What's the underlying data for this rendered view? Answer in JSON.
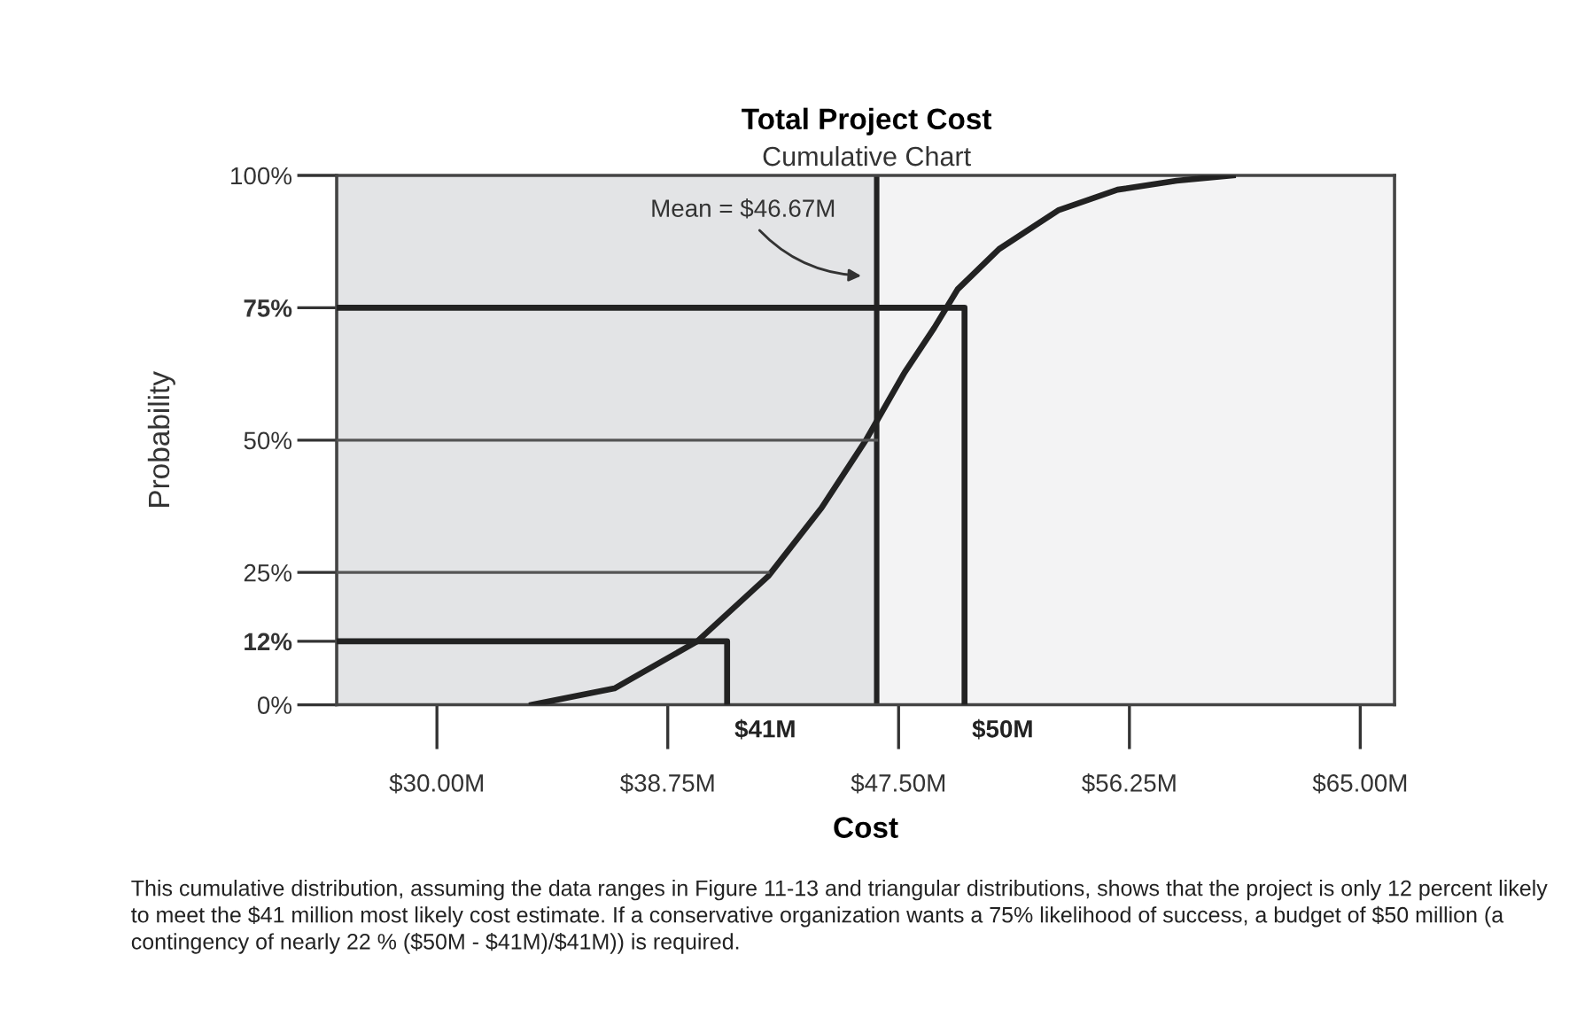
{
  "chart_data": {
    "type": "line",
    "title": "Total Project Cost",
    "subtitle": "Cumulative Chart",
    "xlabel": "Cost",
    "ylabel": "Probability",
    "xlim": [
      26.2,
      66.3
    ],
    "ylim": [
      0,
      100
    ],
    "xticks": [
      {
        "value": 30,
        "label": "$30.00M"
      },
      {
        "value": 38.75,
        "label": "$38.75M"
      },
      {
        "value": 47.5,
        "label": "$47.50M"
      },
      {
        "value": 56.25,
        "label": "$56.25M"
      },
      {
        "value": 65,
        "label": "$65.00M"
      }
    ],
    "yticks": [
      {
        "value": 0,
        "label": "0%"
      },
      {
        "value": 12,
        "label": "12%"
      },
      {
        "value": 25,
        "label": "25%"
      },
      {
        "value": 50,
        "label": "50%"
      },
      {
        "value": 75,
        "label": "75%"
      },
      {
        "value": 100,
        "label": "100%"
      }
    ],
    "series": [
      {
        "color": "#222222",
        "x": [
          33.6,
          36.73,
          39.87,
          42.56,
          44.58,
          46.26,
          47.73,
          48.85,
          49.74,
          51.31,
          53.55,
          55.8,
          58.04,
          60.17
        ],
        "values": [
          0,
          3.1,
          12,
          24.3,
          37.2,
          50,
          62.8,
          71.2,
          78.5,
          86.1,
          93.4,
          97.3,
          99,
          100
        ]
      },
      {
        "color": "#555555",
        "x": [
          26.2,
          42.56
        ],
        "values": [
          25,
          25
        ]
      },
      {
        "color": "#555555",
        "x": [
          26.2,
          46.67
        ],
        "values": [
          50,
          50
        ]
      },
      {
        "color": "#222222",
        "x": [
          26.2,
          41,
          41
        ],
        "values": [
          12,
          12,
          0
        ]
      },
      {
        "color": "#222222",
        "x": [
          26.2,
          50,
          50
        ],
        "values": [
          75,
          75,
          0
        ]
      }
    ],
    "ref_lines": [
      {
        "axis": "x",
        "value": 46.67,
        "color": "#222222"
      }
    ],
    "bands": [
      {
        "axis": "x",
        "from": 26.2,
        "to": 46.67,
        "color": "#e3e4e6"
      }
    ],
    "annotations": [
      {
        "text": "Mean = $46.67M",
        "x": 46.67,
        "y": 81
      },
      {
        "text": "$41M",
        "x": 41,
        "y": 0
      },
      {
        "text": "$50M",
        "x": 50,
        "y": 0
      },
      "This cumulative distribution, assuming the data ranges in Figure 11-13 and triangular distributions, shows that the project is only 12 percent likely to meet the $41 million most likely cost estimate. If a conservative organization wants a 75% likelihood of success, a budget of $50 million (a contingency of nearly 22 % ($50M - $41M)/$41M)) is required."
    ],
    "grid": false
  }
}
